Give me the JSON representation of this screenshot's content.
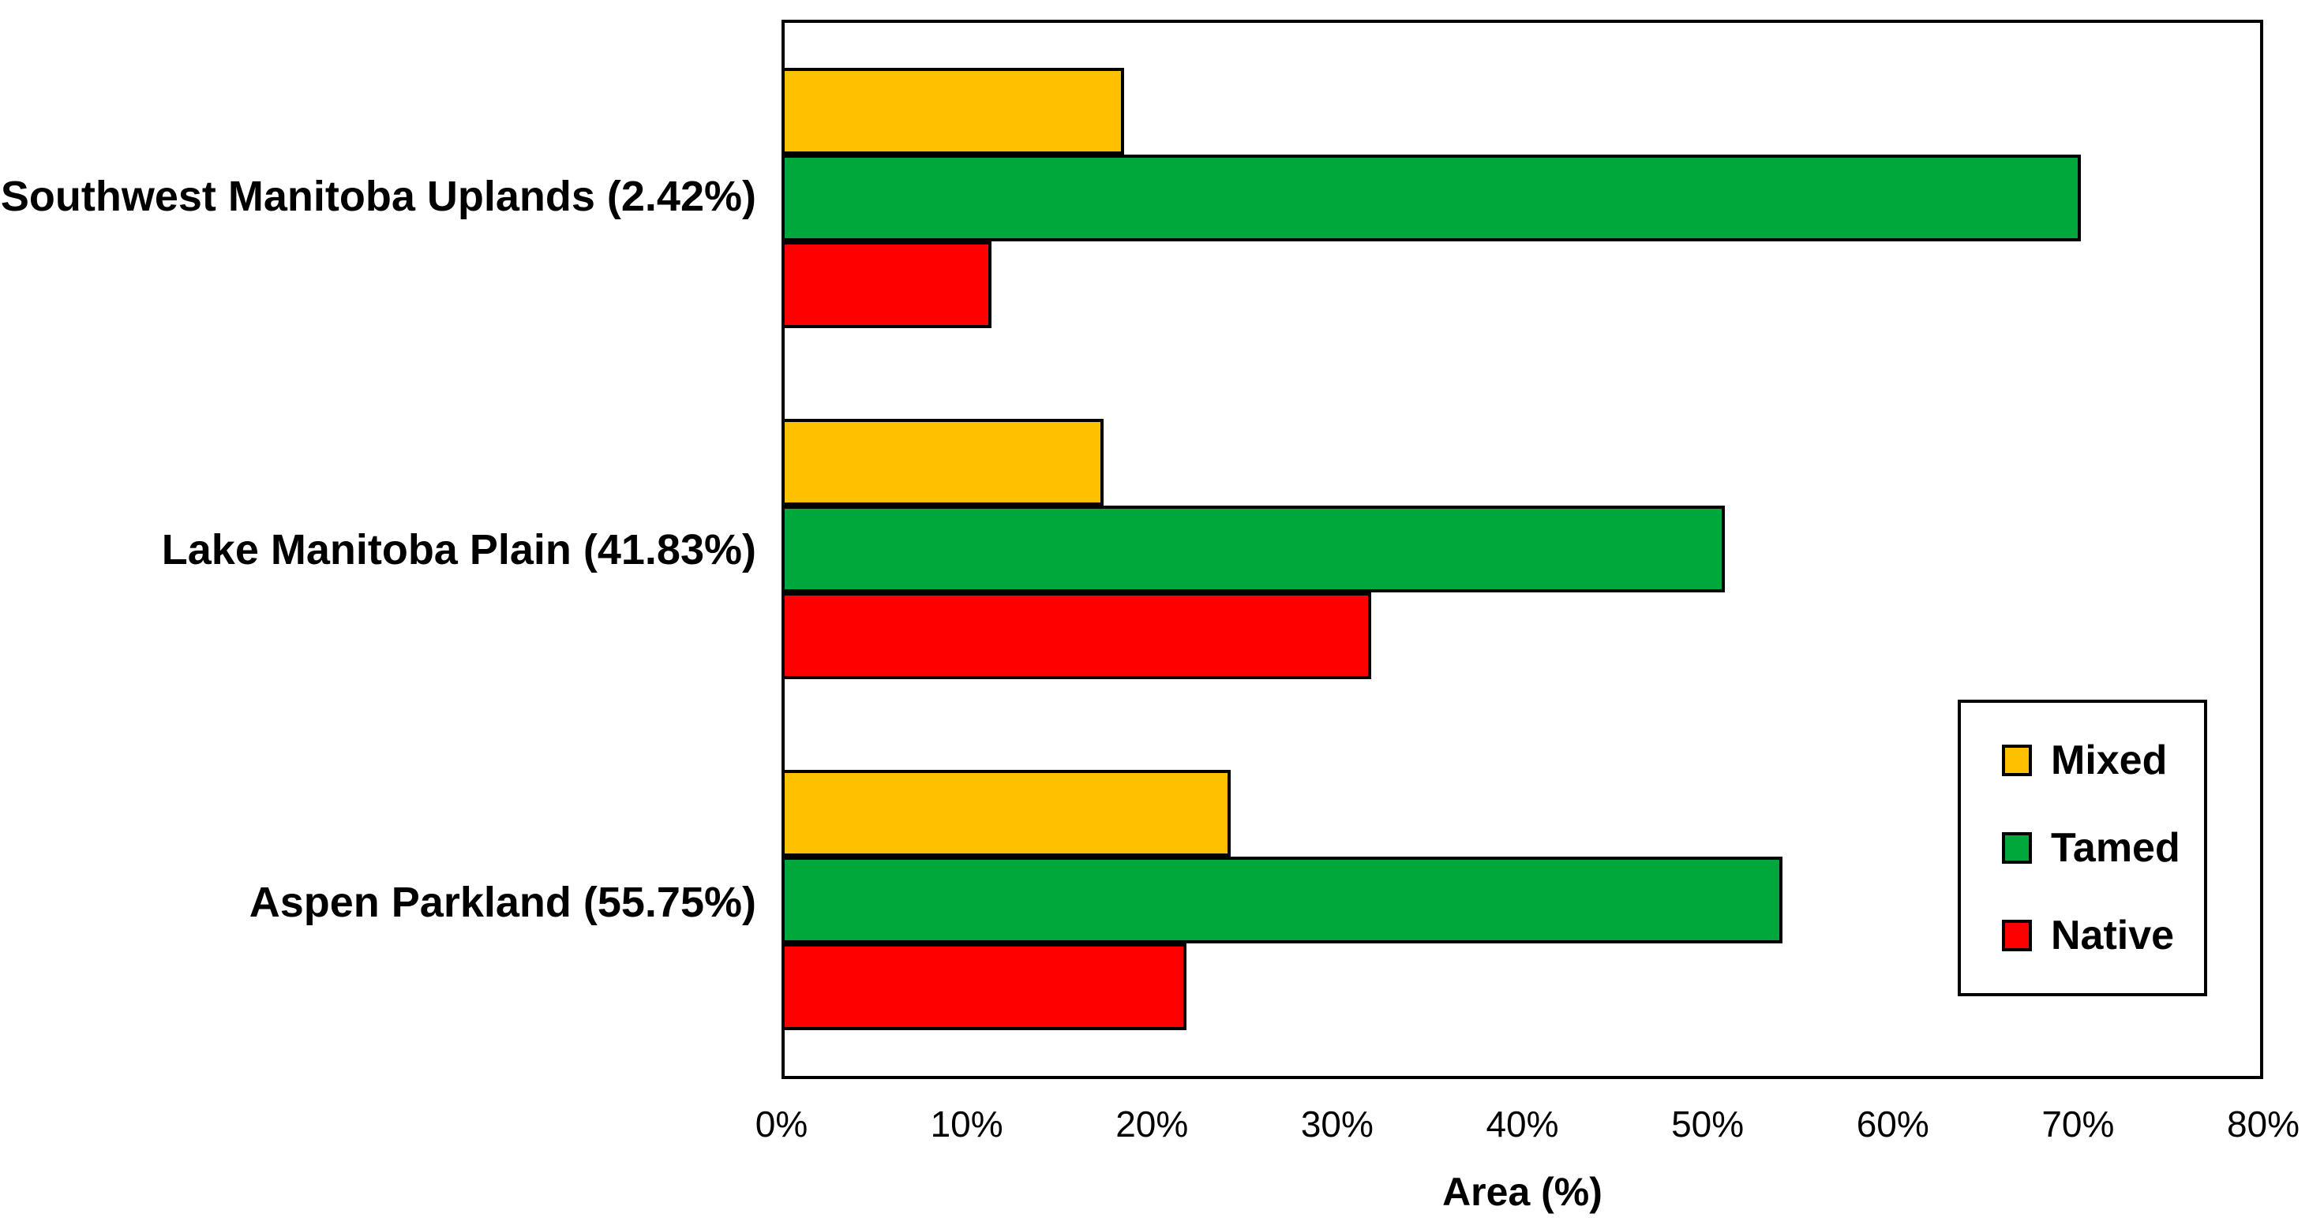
{
  "page": {
    "background": "#FFFFFF"
  },
  "chart_data": {
    "type": "bar",
    "orientation": "horizontal",
    "title": "",
    "xlabel": "Area (%)",
    "ylabel": "",
    "xlim": [
      0,
      80
    ],
    "x_ticks": [
      "0%",
      "10%",
      "20%",
      "30%",
      "40%",
      "50%",
      "60%",
      "70%",
      "80%"
    ],
    "grid": false,
    "legend_position": "inside-right",
    "categories": [
      "Southwest Manitoba Uplands (2.42%)",
      "Lake Manitoba Plain (41.83%)",
      "Aspen Parkland (55.75%)"
    ],
    "series": [
      {
        "name": "Mixed",
        "color": "#FFC000",
        "values": [
          18.4,
          17.3,
          24.2
        ]
      },
      {
        "name": "Tamed",
        "color": "#00A83C",
        "values": [
          70.3,
          51.0,
          54.1
        ]
      },
      {
        "name": "Native",
        "color": "#FF0000",
        "values": [
          11.2,
          31.8,
          21.8
        ]
      }
    ],
    "bar_border_color": "#000000",
    "plot_border_color": "#000000"
  }
}
